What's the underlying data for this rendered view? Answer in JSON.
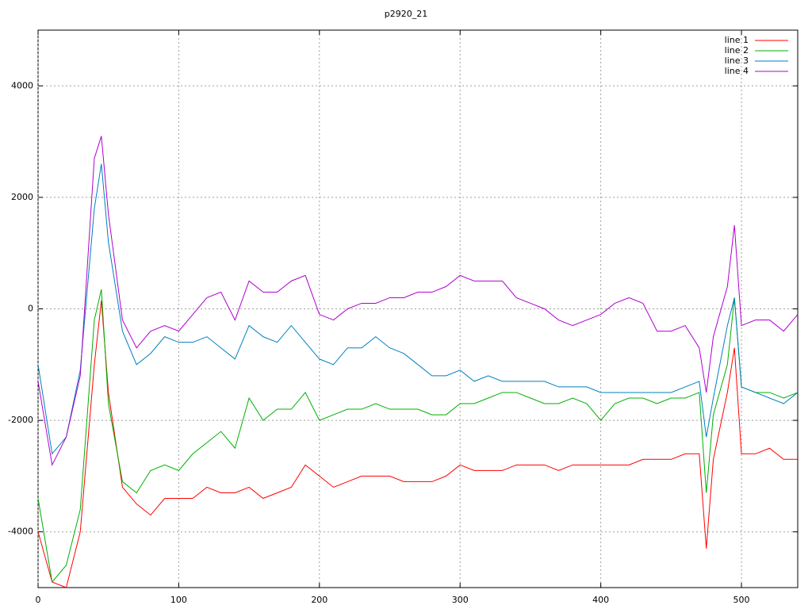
{
  "chart_data": {
    "type": "line",
    "title": "p2920_21",
    "x": [
      0,
      10,
      20,
      30,
      40,
      45,
      50,
      60,
      70,
      80,
      90,
      100,
      110,
      120,
      130,
      140,
      150,
      160,
      170,
      180,
      190,
      200,
      210,
      220,
      230,
      240,
      250,
      260,
      270,
      280,
      290,
      300,
      310,
      320,
      330,
      340,
      350,
      360,
      370,
      380,
      390,
      400,
      410,
      420,
      430,
      440,
      450,
      460,
      470,
      475,
      480,
      490,
      495,
      500,
      510,
      520,
      530,
      540
    ],
    "series": [
      {
        "name": "line 1",
        "color": "#ff0000",
        "values": [
          -4000,
          -4900,
          -5000,
          -4000,
          -1000,
          150,
          -1500,
          -3200,
          -3500,
          -3700,
          -3400,
          -3400,
          -3400,
          -3200,
          -3300,
          -3300,
          -3200,
          -3400,
          -3300,
          -3200,
          -2800,
          -3000,
          -3200,
          -3100,
          -3000,
          -3000,
          -3000,
          -3100,
          -3100,
          -3100,
          -3000,
          -2800,
          -2900,
          -2900,
          -2900,
          -2800,
          -2800,
          -2800,
          -2900,
          -2800,
          -2800,
          -2800,
          -2800,
          -2800,
          -2700,
          -2700,
          -2700,
          -2600,
          -2600,
          -4300,
          -2700,
          -1500,
          -700,
          -2600,
          -2600,
          -2500,
          -2700,
          -2700
        ]
      },
      {
        "name": "line 2",
        "color": "#00b000",
        "values": [
          -3400,
          -4900,
          -4600,
          -3600,
          -200,
          350,
          -1700,
          -3100,
          -3300,
          -2900,
          -2800,
          -2900,
          -2600,
          -2400,
          -2200,
          -2500,
          -1600,
          -2000,
          -1800,
          -1800,
          -1500,
          -2000,
          -1900,
          -1800,
          -1800,
          -1700,
          -1800,
          -1800,
          -1800,
          -1900,
          -1900,
          -1700,
          -1700,
          -1600,
          -1500,
          -1500,
          -1600,
          -1700,
          -1700,
          -1600,
          -1700,
          -2000,
          -1700,
          -1600,
          -1600,
          -1700,
          -1600,
          -1600,
          -1500,
          -3300,
          -1900,
          -1000,
          200,
          -1400,
          -1500,
          -1500,
          -1600,
          -1500
        ]
      },
      {
        "name": "line 3",
        "color": "#0080c0",
        "values": [
          -1000,
          -2600,
          -2300,
          -1100,
          1800,
          2600,
          1200,
          -400,
          -1000,
          -800,
          -500,
          -600,
          -600,
          -500,
          -700,
          -900,
          -300,
          -500,
          -600,
          -300,
          -600,
          -900,
          -1000,
          -700,
          -700,
          -500,
          -700,
          -800,
          -1000,
          -1200,
          -1200,
          -1100,
          -1300,
          -1200,
          -1300,
          -1300,
          -1300,
          -1300,
          -1400,
          -1400,
          -1400,
          -1500,
          -1500,
          -1500,
          -1500,
          -1500,
          -1500,
          -1400,
          -1300,
          -2300,
          -1600,
          -300,
          200,
          -1400,
          -1500,
          -1600,
          -1700,
          -1500
        ]
      },
      {
        "name": "line 4",
        "color": "#b000d0",
        "values": [
          -1300,
          -2800,
          -2300,
          -1200,
          2700,
          3100,
          1700,
          -200,
          -700,
          -400,
          -300,
          -400,
          -100,
          200,
          300,
          -200,
          500,
          300,
          300,
          500,
          600,
          -100,
          -200,
          0,
          100,
          100,
          200,
          200,
          300,
          300,
          400,
          600,
          500,
          500,
          500,
          200,
          100,
          0,
          -200,
          -300,
          -200,
          -100,
          100,
          200,
          100,
          -400,
          -400,
          -300,
          -700,
          -1500,
          -500,
          400,
          1500,
          -300,
          -200,
          -200,
          -400,
          -100
        ]
      }
    ],
    "xlim": [
      0,
      540
    ],
    "xticks": [
      0,
      100,
      200,
      300,
      400,
      500
    ],
    "ylim": [
      -5000,
      5000
    ],
    "yticks": [
      -4000,
      -2000,
      0,
      2000,
      4000
    ],
    "grid": true,
    "legend": "top right"
  }
}
